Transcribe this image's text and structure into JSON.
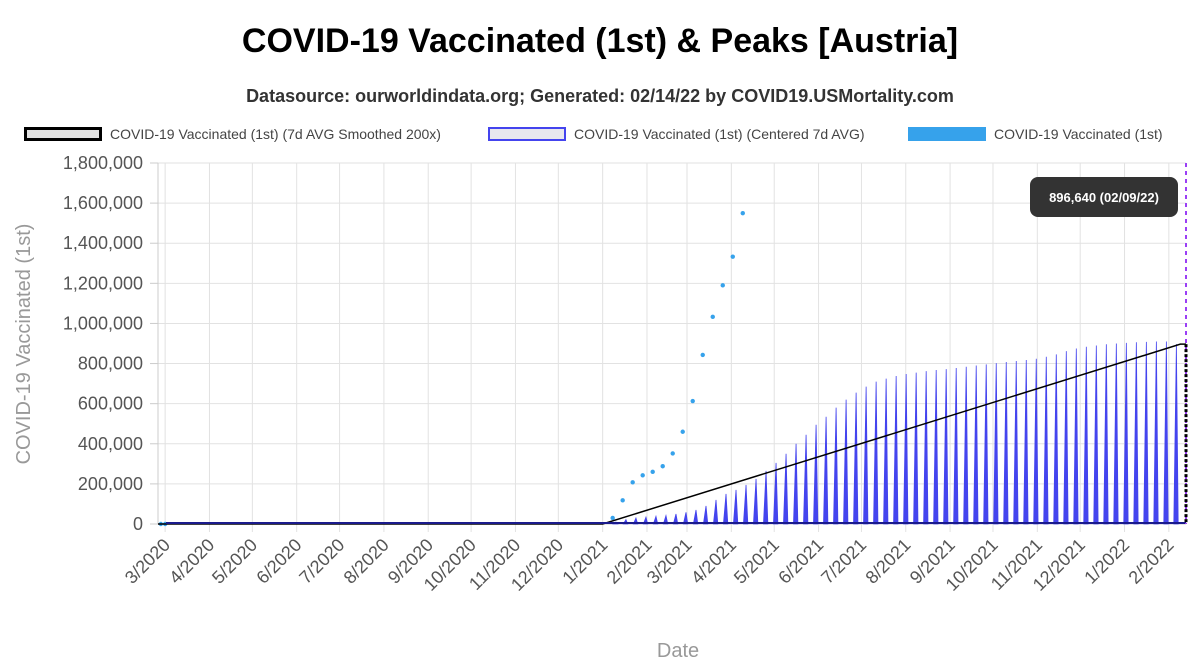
{
  "header": {
    "title": "COVID-19 Vaccinated (1st) & Peaks [Austria]",
    "subtitle": "Datasource: ourworldindata.org; Generated: 02/14/22 by COVID19.USMortality.com"
  },
  "legend": {
    "items": [
      {
        "label": "COVID-19 Vaccinated (1st) (7d AVG Smoothed 200x)",
        "color": "#000000"
      },
      {
        "label": "COVID-19 Vaccinated (1st) (Centered 7d AVG)",
        "color": "#4444ee"
      },
      {
        "label": "COVID-19 Vaccinated (1st)",
        "color": "#36a2eb"
      }
    ]
  },
  "chart_data": {
    "type": "bar",
    "title": "COVID-19 Vaccinated (1st) & Peaks [Austria]",
    "xlabel": "Date",
    "ylabel": "COVID-19 Vaccinated (1st)",
    "ylim": [
      0,
      1800000
    ],
    "y_ticks": [
      "0",
      "200,000",
      "400,000",
      "600,000",
      "800,000",
      "1,000,000",
      "1,200,000",
      "1,400,000",
      "1,600,000",
      "1,800,000"
    ],
    "x_ticks": [
      "3/2020",
      "4/2020",
      "5/2020",
      "6/2020",
      "7/2020",
      "8/2020",
      "9/2020",
      "10/2020",
      "11/2020",
      "12/2020",
      "1/2021",
      "2/2021",
      "3/2021",
      "4/2021",
      "5/2021",
      "6/2021",
      "7/2021",
      "8/2021",
      "9/2021",
      "10/2021",
      "11/2021",
      "12/2021",
      "1/2022",
      "2/2022"
    ],
    "x_range": [
      "2020-02-25",
      "2022-02-13"
    ],
    "grid": true,
    "legend_position": "top",
    "series": [
      {
        "name": "COVID-19 Vaccinated (1st) (Centered 7d AVG)",
        "type": "bar",
        "color": "#4444ee",
        "x": [
          "2021-01-10",
          "2021-01-17",
          "2021-01-24",
          "2021-01-31",
          "2021-02-07",
          "2021-02-14",
          "2021-02-21",
          "2021-02-28",
          "2021-03-07",
          "2021-03-14",
          "2021-03-21",
          "2021-03-28",
          "2021-04-04",
          "2021-04-11",
          "2021-04-18",
          "2021-04-25",
          "2021-05-02",
          "2021-05-09",
          "2021-05-16",
          "2021-05-23",
          "2021-05-30",
          "2021-06-06",
          "2021-06-13",
          "2021-06-20",
          "2021-06-27",
          "2021-07-04",
          "2021-07-11",
          "2021-07-18",
          "2021-07-25",
          "2021-08-01",
          "2021-08-08",
          "2021-08-15",
          "2021-08-22",
          "2021-08-29",
          "2021-09-05",
          "2021-09-12",
          "2021-09-19",
          "2021-09-26",
          "2021-10-03",
          "2021-10-10",
          "2021-10-17",
          "2021-10-24",
          "2021-10-31",
          "2021-11-07",
          "2021-11-14",
          "2021-11-21",
          "2021-11-28",
          "2021-12-05",
          "2021-12-12",
          "2021-12-19",
          "2021-12-26",
          "2022-01-02",
          "2022-01-09",
          "2022-01-16",
          "2022-01-23",
          "2022-01-30",
          "2022-02-06"
        ],
        "values": [
          10000,
          22000,
          30000,
          34000,
          38000,
          42000,
          50000,
          58000,
          70000,
          90000,
          120000,
          150000,
          170000,
          195000,
          225000,
          265000,
          305000,
          350000,
          400000,
          445000,
          495000,
          535000,
          580000,
          620000,
          655000,
          685000,
          710000,
          725000,
          738000,
          748000,
          755000,
          762000,
          768000,
          772000,
          778000,
          784000,
          790000,
          796000,
          802000,
          808000,
          813000,
          818000,
          824000,
          834000,
          846000,
          862000,
          875000,
          884000,
          890000,
          896000,
          900000,
          903000,
          906000,
          908000,
          910000,
          910000,
          897000
        ]
      },
      {
        "name": "COVID-19 Vaccinated (1st)",
        "type": "scatter",
        "color": "#36a2eb",
        "x": [
          "2020-02-27",
          "2020-03-01",
          "2021-01-08",
          "2021-01-15",
          "2021-01-22",
          "2021-01-29",
          "2021-02-05",
          "2021-02-12",
          "2021-02-19",
          "2021-02-26",
          "2021-03-05",
          "2021-03-12",
          "2021-03-19",
          "2021-03-26",
          "2021-04-02",
          "2021-04-09"
        ],
        "values": [
          0,
          0,
          30000,
          118000,
          208000,
          243000,
          260000,
          288000,
          352000,
          460000,
          613000,
          843000,
          1033000,
          1190000,
          1333000,
          1550000
        ]
      },
      {
        "name": "COVID-19 Vaccinated (1st) (7d AVG Smoothed 200x)",
        "type": "line",
        "color": "#000000",
        "x": [
          "2020-02-25",
          "2021-01-01",
          "2022-02-09",
          "2022-02-13"
        ],
        "values": [
          0,
          0,
          896640,
          896640
        ]
      }
    ],
    "annotations": [
      {
        "type": "vertical-line",
        "x": "2022-02-13",
        "color": "#9b3ff5"
      },
      {
        "type": "tooltip",
        "text": "896,640 (02/09/22)"
      }
    ]
  }
}
